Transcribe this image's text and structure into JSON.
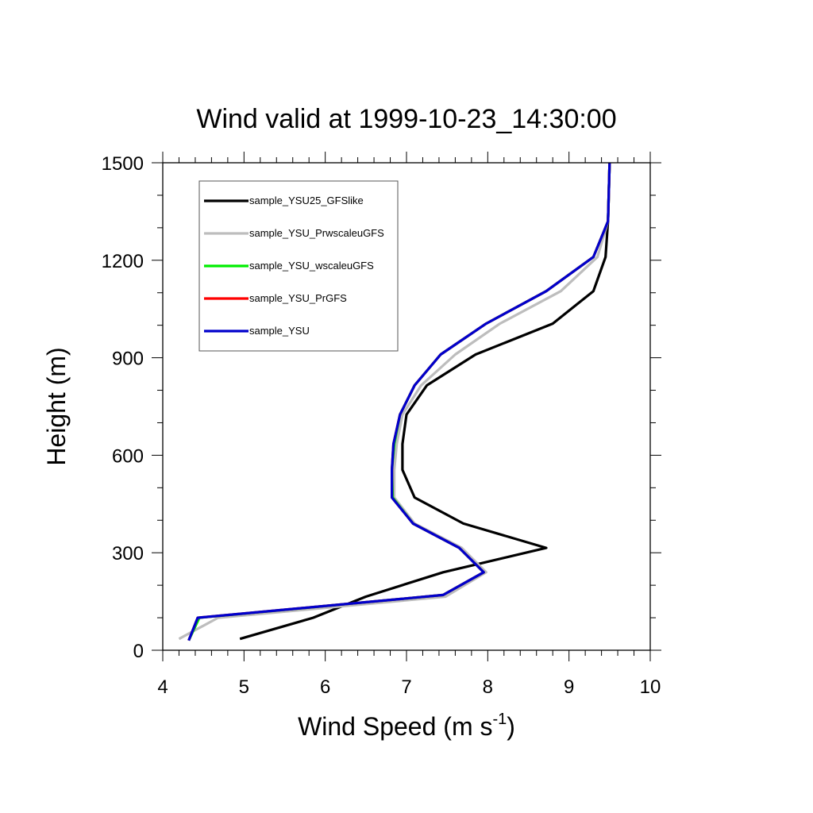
{
  "chart_data": {
    "type": "line",
    "title": "Wind valid at 1999-10-23_14:30:00",
    "xlabel": {
      "base": "Wind Speed (m s",
      "sup": "-1",
      "tail": ")"
    },
    "ylabel": "Height (m)",
    "xlim": [
      4,
      10
    ],
    "ylim": [
      0,
      1500
    ],
    "x_ticks": [
      "4",
      "5",
      "6",
      "7",
      "8",
      "9",
      "10"
    ],
    "y_ticks": [
      "0",
      "300",
      "600",
      "900",
      "1200",
      "1500"
    ],
    "legend_position": "top-left",
    "series": [
      {
        "name": "sample_YSU25_GFSlike",
        "color": "#000000",
        "points": [
          [
            4.95,
            35
          ],
          [
            5.85,
            100
          ],
          [
            6.5,
            165
          ],
          [
            7.45,
            240
          ],
          [
            8.72,
            315
          ],
          [
            7.7,
            390
          ],
          [
            7.1,
            470
          ],
          [
            6.95,
            555
          ],
          [
            6.95,
            635
          ],
          [
            7.0,
            725
          ],
          [
            7.25,
            815
          ],
          [
            7.85,
            910
          ],
          [
            8.8,
            1005
          ],
          [
            9.3,
            1105
          ],
          [
            9.45,
            1210
          ],
          [
            9.48,
            1320
          ],
          [
            9.5,
            1500
          ]
        ]
      },
      {
        "name": "sample_YSU_PrwscaleuGFS",
        "color": "#bdbdbd",
        "points": [
          [
            4.2,
            35
          ],
          [
            4.68,
            100
          ],
          [
            7.48,
            165
          ],
          [
            7.98,
            240
          ],
          [
            7.68,
            315
          ],
          [
            7.1,
            390
          ],
          [
            6.85,
            470
          ],
          [
            6.85,
            555
          ],
          [
            6.88,
            635
          ],
          [
            6.95,
            725
          ],
          [
            7.18,
            815
          ],
          [
            7.6,
            910
          ],
          [
            8.15,
            1005
          ],
          [
            8.9,
            1105
          ],
          [
            9.35,
            1210
          ],
          [
            9.48,
            1320
          ],
          [
            9.5,
            1500
          ]
        ]
      },
      {
        "name": "sample_YSU_wscaleuGFS",
        "color": "#00ee00",
        "points": [
          [
            4.32,
            30
          ],
          [
            4.45,
            100
          ],
          [
            7.45,
            170
          ],
          [
            7.95,
            240
          ],
          [
            7.65,
            315
          ],
          [
            7.08,
            390
          ],
          [
            6.83,
            470
          ],
          [
            6.82,
            555
          ],
          [
            6.85,
            635
          ],
          [
            6.92,
            725
          ],
          [
            7.1,
            815
          ],
          [
            7.42,
            910
          ],
          [
            7.98,
            1005
          ],
          [
            8.72,
            1105
          ],
          [
            9.3,
            1210
          ],
          [
            9.48,
            1320
          ],
          [
            9.5,
            1500
          ]
        ]
      },
      {
        "name": "sample_YSU_PrGFS",
        "color": "#ff0000",
        "points": [
          [
            4.32,
            30
          ],
          [
            4.43,
            100
          ],
          [
            7.45,
            170
          ],
          [
            7.95,
            240
          ],
          [
            7.65,
            315
          ],
          [
            7.08,
            390
          ],
          [
            6.82,
            470
          ],
          [
            6.82,
            555
          ],
          [
            6.84,
            635
          ],
          [
            6.92,
            725
          ],
          [
            7.1,
            815
          ],
          [
            7.42,
            910
          ],
          [
            7.98,
            1005
          ],
          [
            8.72,
            1105
          ],
          [
            9.3,
            1210
          ],
          [
            9.48,
            1320
          ],
          [
            9.5,
            1500
          ]
        ]
      },
      {
        "name": "sample_YSU",
        "color": "#0000cc",
        "points": [
          [
            4.32,
            30
          ],
          [
            4.43,
            100
          ],
          [
            7.45,
            170
          ],
          [
            7.95,
            240
          ],
          [
            7.65,
            315
          ],
          [
            7.08,
            390
          ],
          [
            6.82,
            470
          ],
          [
            6.82,
            555
          ],
          [
            6.84,
            635
          ],
          [
            6.92,
            725
          ],
          [
            7.1,
            815
          ],
          [
            7.42,
            910
          ],
          [
            7.98,
            1005
          ],
          [
            8.72,
            1105
          ],
          [
            9.3,
            1210
          ],
          [
            9.48,
            1320
          ],
          [
            9.5,
            1500
          ]
        ]
      }
    ]
  }
}
